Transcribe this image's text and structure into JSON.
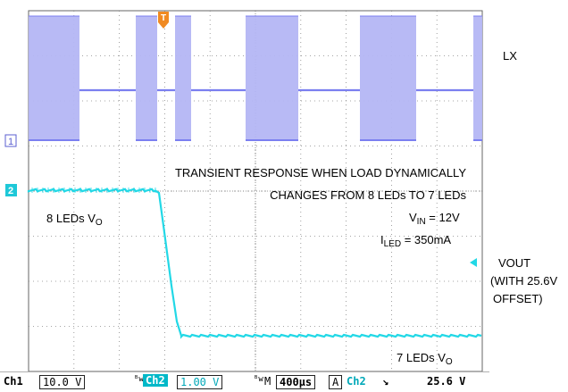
{
  "colors": {
    "ch1": "#7b7ff0",
    "ch1_fill": "#b4b6f4",
    "ch2": "#22d8e6",
    "trigger": "#f08a22",
    "grid": "#666666"
  },
  "markers": {
    "ch1_label": "1",
    "ch2_label": "2",
    "trigger_label": "T"
  },
  "annotations": {
    "lx": "LX",
    "title_line1": "TRANSIENT RESPONSE WHEN LOAD DYNAMICALLY",
    "title_line2": "CHANGES FROM 8 LEDs TO 7 LEDs",
    "leds8_main": "8 LEDs V",
    "leds8_sub": "O",
    "vin_main": "V",
    "vin_sub": "IN",
    "vin_value": " = 12V",
    "iled_main": "I",
    "iled_sub": "LED",
    "iled_value": " = 350mA",
    "vout_line1": "VOUT",
    "vout_line2": "(WITH 25.6V",
    "vout_line3": "OFFSET)",
    "leds7_main": "7 LEDs V",
    "leds7_sub": "O"
  },
  "statusbar": {
    "ch1_label": "Ch1",
    "ch1_scale": "10.0 V",
    "bw1": "ᴮw",
    "ch2_label": "Ch2",
    "ch2_scale": "1.00 V",
    "bw2": "ᴮw",
    "m_label": "M",
    "timebase": "400µs",
    "a_label": "A",
    "trig_ch": "Ch2",
    "trig_slope": "↘",
    "trig_level": "25.6 V"
  }
}
